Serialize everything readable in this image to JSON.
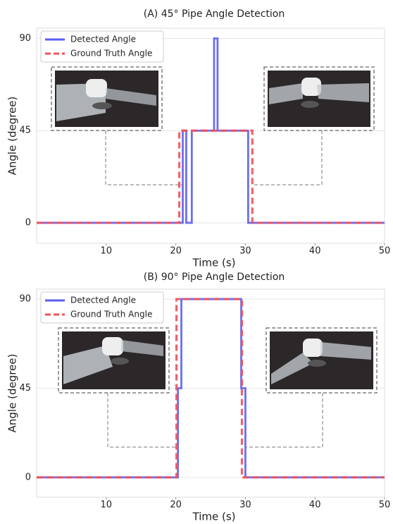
{
  "chart_data": [
    {
      "type": "line",
      "title": "(A) 45° Pipe Angle Detection",
      "x_label": "Time (s)",
      "y_label": "Angle (degree)",
      "xlim": [
        0,
        50
      ],
      "ylim": [
        -10,
        95
      ],
      "xticks": [
        10,
        20,
        30,
        40,
        50
      ],
      "yticks": [
        0,
        45,
        90
      ],
      "grid": "y",
      "legend": "upper left",
      "series": [
        {
          "name": "Detected Angle",
          "color": "#5b5ef0",
          "style": "solid",
          "x": [
            0,
            21,
            21,
            21.5,
            21.5,
            22.3,
            22.3,
            25.5,
            25.5,
            26,
            26,
            30.4,
            30.4,
            50
          ],
          "values": [
            0,
            0,
            45,
            45,
            0,
            0,
            45,
            45,
            90,
            90,
            45,
            45,
            0,
            0
          ]
        },
        {
          "name": "Ground Truth Angle",
          "color": "#f0525a",
          "style": "dashed",
          "x": [
            0,
            20.5,
            20.5,
            31,
            31,
            50
          ],
          "values": [
            0,
            0,
            45,
            45,
            0,
            0
          ]
        }
      ]
    },
    {
      "type": "line",
      "title": "(B) 90° Pipe Angle Detection",
      "x_label": "Time (s)",
      "y_label": "Angle (degree)",
      "xlim": [
        0,
        50
      ],
      "ylim": [
        -10,
        95
      ],
      "xticks": [
        10,
        20,
        30,
        40,
        50
      ],
      "yticks": [
        0,
        45,
        90
      ],
      "grid": "y",
      "legend": "upper left",
      "series": [
        {
          "name": "Detected Angle",
          "color": "#5b5ef0",
          "style": "solid",
          "x": [
            0,
            20.3,
            20.3,
            20.8,
            20.8,
            29.4,
            29.4,
            30,
            30,
            50
          ],
          "values": [
            0,
            0,
            45,
            45,
            90,
            90,
            45,
            45,
            0,
            0
          ]
        },
        {
          "name": "Ground Truth Angle",
          "color": "#f0525a",
          "style": "dashed",
          "x": [
            0,
            20.1,
            20.1,
            29.5,
            29.5,
            50
          ],
          "values": [
            0,
            0,
            90,
            90,
            0,
            0
          ]
        }
      ]
    }
  ]
}
